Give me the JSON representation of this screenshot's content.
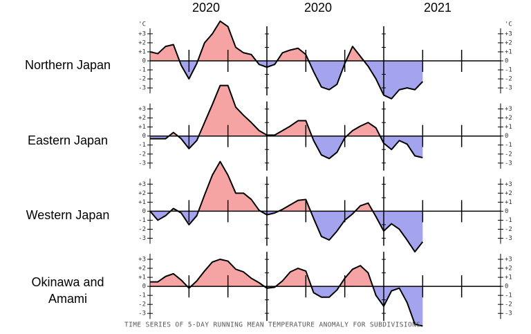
{
  "year_labels": [
    "2020",
    "2020",
    "2021"
  ],
  "caption": "TIME SERIES OF 5-DAY RUNNING MEAN TEMPERATURE ANOMALY FOR SUBDIVISIONS",
  "unit": "'C",
  "chart_data": [
    {
      "type": "area",
      "title": "Northern Japan",
      "x": [
        0,
        0.2,
        0.4,
        0.6,
        0.8,
        1.0,
        1.2,
        1.4,
        1.6,
        1.8,
        2.0,
        2.2,
        2.4,
        2.6,
        2.8,
        3.0,
        3.2,
        3.4,
        3.6,
        3.8,
        4.0,
        4.2,
        4.4,
        4.6,
        4.8,
        5.0,
        5.2,
        5.4,
        5.6,
        5.8,
        6.0,
        6.2,
        6.4,
        6.6,
        6.8,
        7.0
      ],
      "values": [
        1.0,
        0.8,
        1.6,
        1.8,
        -0.5,
        -2.0,
        -0.3,
        2.0,
        3.0,
        4.4,
        3.8,
        1.5,
        0.9,
        0.7,
        -0.4,
        -0.7,
        -0.4,
        0.9,
        1.2,
        1.4,
        0.7,
        -1.2,
        -2.9,
        -3.2,
        -2.6,
        -0.3,
        1.6,
        0.5,
        -0.6,
        -2.0,
        -3.8,
        -4.2,
        -3.2,
        -3.0,
        -3.2,
        -2.3
      ],
      "positive_color": "#f6a3a3",
      "negative_color": "#a3a3ee",
      "xlim": [
        0,
        9
      ],
      "xticks": [
        1,
        2,
        3,
        4,
        5,
        6,
        7,
        8
      ],
      "major_xticks": [
        3,
        6
      ],
      "ylim": [
        -4.6,
        4.6
      ],
      "yticks": [
        {
          "value": 3,
          "label": "+3"
        },
        {
          "value": 2,
          "label": "+2"
        },
        {
          "value": 1,
          "label": "+1"
        },
        0,
        -1,
        -2,
        -3
      ]
    },
    {
      "type": "area",
      "title": "Eastern Japan",
      "x": [
        0,
        0.2,
        0.4,
        0.6,
        0.8,
        1.0,
        1.2,
        1.4,
        1.6,
        1.8,
        2.0,
        2.2,
        2.4,
        2.6,
        2.8,
        3.0,
        3.2,
        3.4,
        3.6,
        3.8,
        4.0,
        4.2,
        4.4,
        4.6,
        4.8,
        5.0,
        5.2,
        5.4,
        5.6,
        5.8,
        6.0,
        6.2,
        6.4,
        6.6,
        6.8,
        7.0
      ],
      "values": [
        -0.3,
        -0.3,
        -0.3,
        0.4,
        -0.3,
        -1.4,
        -0.5,
        1.5,
        3.5,
        5.6,
        5.6,
        3.2,
        2.3,
        1.5,
        0.6,
        0.1,
        0.1,
        0.6,
        1.1,
        1.7,
        1.7,
        -0.5,
        -2.1,
        -2.5,
        -1.8,
        -0.2,
        0.6,
        1.1,
        1.5,
        0.9,
        -0.8,
        -1.5,
        -0.5,
        -0.9,
        -2.2,
        -2.4
      ],
      "positive_color": "#f6a3a3",
      "negative_color": "#a3a3ee",
      "xlim": [
        0,
        9
      ],
      "xticks": [
        1,
        2,
        3,
        4,
        5,
        6,
        7,
        8
      ],
      "major_xticks": [
        3,
        6
      ],
      "ylim": [
        -4.6,
        4.6
      ],
      "yticks": [
        {
          "value": 3,
          "label": "+3"
        },
        {
          "value": 2,
          "label": "+2"
        },
        {
          "value": 1,
          "label": "+1"
        },
        0,
        -1,
        -2,
        -3
      ]
    },
    {
      "type": "area",
      "title": "Western Japan",
      "x": [
        0,
        0.2,
        0.4,
        0.6,
        0.8,
        1.0,
        1.2,
        1.4,
        1.6,
        1.8,
        2.0,
        2.2,
        2.4,
        2.6,
        2.8,
        3.0,
        3.2,
        3.4,
        3.6,
        3.8,
        4.0,
        4.2,
        4.4,
        4.6,
        4.8,
        5.0,
        5.2,
        5.4,
        5.6,
        5.8,
        6.0,
        6.2,
        6.4,
        6.6,
        6.8,
        7.0
      ],
      "values": [
        0,
        -1.0,
        -0.5,
        0.3,
        -0.2,
        -1.5,
        -0.5,
        1.8,
        4.0,
        5.5,
        4.0,
        2.0,
        2.0,
        1.3,
        0.1,
        -0.4,
        -0.2,
        0.2,
        0.7,
        1.2,
        1.3,
        -0.8,
        -2.8,
        -3.2,
        -2.2,
        -1.0,
        -0.3,
        0.6,
        0.9,
        -0.6,
        -2.2,
        -1.4,
        -2.0,
        -3.2,
        -4.5,
        -3.4
      ],
      "positive_color": "#f6a3a3",
      "negative_color": "#a3a3ee",
      "xlim": [
        0,
        9
      ],
      "xticks": [
        1,
        2,
        3,
        4,
        5,
        6,
        7,
        8
      ],
      "major_xticks": [
        3,
        6
      ],
      "ylim": [
        -4.6,
        4.6
      ],
      "yticks": [
        {
          "value": 3,
          "label": "+3"
        },
        {
          "value": 2,
          "label": "+2"
        },
        {
          "value": 1,
          "label": "+1"
        },
        0,
        -1,
        -2,
        -3
      ]
    },
    {
      "type": "area",
      "title": "Okinawa and Amami",
      "x": [
        0,
        0.2,
        0.4,
        0.6,
        0.8,
        1.0,
        1.2,
        1.4,
        1.6,
        1.8,
        2.0,
        2.2,
        2.4,
        2.6,
        2.8,
        3.0,
        3.2,
        3.4,
        3.6,
        3.8,
        4.0,
        4.2,
        4.4,
        4.6,
        4.8,
        5.0,
        5.2,
        5.4,
        5.6,
        5.8,
        6.0,
        6.2,
        6.4,
        6.6,
        6.8,
        7.0
      ],
      "values": [
        0.5,
        0.5,
        1.1,
        1.4,
        0.7,
        -0.2,
        0.6,
        1.7,
        2.7,
        3.0,
        2.8,
        1.9,
        1.6,
        0.9,
        0.4,
        -0.2,
        -0.1,
        0.6,
        1.6,
        2.0,
        1.7,
        -0.7,
        -1.2,
        -1.2,
        -0.4,
        0.9,
        1.9,
        2.3,
        1.5,
        -1.0,
        -2.2,
        -0.5,
        -0.2,
        -1.8,
        -4.2,
        -4.4
      ],
      "positive_color": "#f6a3a3",
      "negative_color": "#a3a3ee",
      "xlim": [
        0,
        9
      ],
      "xticks": [
        1,
        2,
        3,
        4,
        5,
        6,
        7,
        8
      ],
      "major_xticks": [
        3,
        6
      ],
      "ylim": [
        -4.6,
        4.6
      ],
      "yticks": [
        {
          "value": 3,
          "label": "+3"
        },
        {
          "value": 2,
          "label": "+2"
        },
        {
          "value": 1,
          "label": "+1"
        },
        0,
        -1,
        -2,
        -3
      ]
    }
  ]
}
